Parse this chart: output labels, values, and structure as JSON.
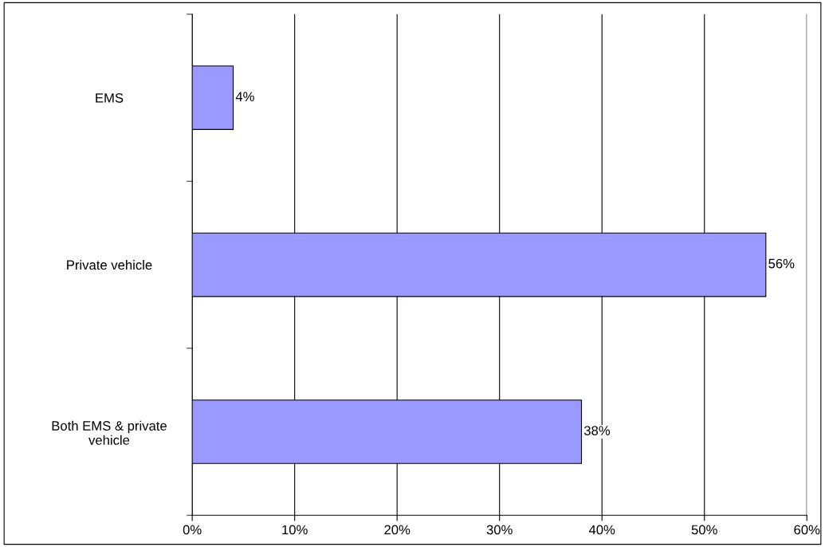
{
  "chart_data": {
    "type": "bar",
    "orientation": "horizontal",
    "categories": [
      "EMS",
      "Private vehicle",
      "Both EMS & private\nvehicle"
    ],
    "values": [
      4,
      56,
      38
    ],
    "value_labels": [
      "4%",
      "56%",
      "38%"
    ],
    "color": "#9999ff",
    "xlim": [
      0,
      60
    ],
    "xticks": [
      {
        "value": 0,
        "label": "0%"
      },
      {
        "value": 10,
        "label": "10%"
      },
      {
        "value": 20,
        "label": "20%"
      },
      {
        "value": 30,
        "label": "30%"
      },
      {
        "value": 40,
        "label": "40%"
      },
      {
        "value": 50,
        "label": "50%"
      },
      {
        "value": 60,
        "label": "60%"
      }
    ],
    "grid": "x",
    "legend": false
  }
}
